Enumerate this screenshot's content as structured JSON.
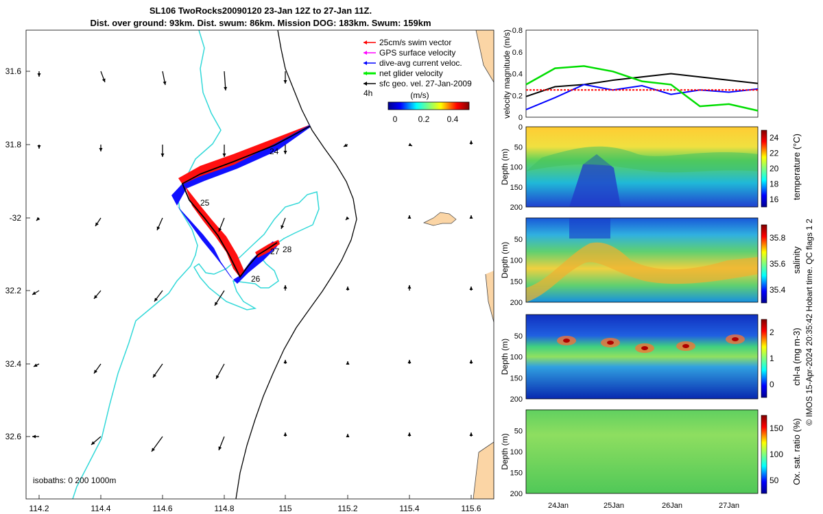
{
  "title": {
    "line1": "SL106 TwoRocks20090120 23-Jan 12Z to 27-Jan 11Z.",
    "line2": "Dist. over ground: 93km. Dist. swum: 86km. Mission DOG: 183km. Swum: 159km"
  },
  "credit": "© IMOS 15-Apr-2024 20:35:42 Hobart time. QC flags 1  2",
  "map": {
    "lon_ticks": [
      "114.2",
      "114.4",
      "114.6",
      "114.8",
      "115",
      "115.2",
      "115.4",
      "115.6"
    ],
    "lat_ticks": [
      "31.6",
      "31.8",
      "-32",
      "32.2",
      "32.4",
      "32.6"
    ],
    "isobaths_label": "isobaths: 0   200  1000m",
    "day_labels": [
      "24",
      "25",
      "26",
      "27",
      "28"
    ],
    "legend": [
      {
        "label": "25cm/s swim vector",
        "color": "#ff0000"
      },
      {
        "label": "GPS surface velocity",
        "color": "#ff00ff"
      },
      {
        "label": "dive-avg current veloc.",
        "color": "#0000ff"
      },
      {
        "label": "net glider velocity",
        "color": "#00ee00"
      },
      {
        "label": "sfc geo. vel. 27-Jan-2009",
        "color": "#000000"
      }
    ],
    "scale_label": "4h",
    "colorbar_title": "(m/s)",
    "colorbar_ticks": [
      "0",
      "0.2",
      "0.4"
    ]
  },
  "chart_data": [
    {
      "type": "line",
      "ylabel": "velocity magnitude (m/s)",
      "ylim": [
        0,
        0.8
      ],
      "yticks": [
        "0",
        "0.2",
        "0.4",
        "0.6",
        "0.8"
      ],
      "x_days": [
        0,
        0.5,
        1,
        1.5,
        2,
        2.5,
        3,
        3.5,
        4
      ],
      "series": [
        {
          "name": "sfc geo. vel.",
          "color": "#000000",
          "values": [
            0.19,
            0.28,
            0.3,
            0.34,
            0.37,
            0.4,
            0.37,
            0.34,
            0.31
          ]
        },
        {
          "name": "dive-avg current",
          "color": "#0000ff",
          "values": [
            0.07,
            0.18,
            0.3,
            0.25,
            0.29,
            0.21,
            0.25,
            0.23,
            0.26
          ]
        },
        {
          "name": "swim vector",
          "color": "#ff0000",
          "values": [
            0.25,
            0.25,
            0.25,
            0.25,
            0.25,
            0.25,
            0.25,
            0.25,
            0.25
          ]
        },
        {
          "name": "net glider velocity",
          "color": "#00dd00",
          "values": [
            0.3,
            0.45,
            0.47,
            0.42,
            0.33,
            0.3,
            0.1,
            0.12,
            0.06
          ]
        }
      ]
    },
    {
      "type": "heatmap",
      "ylabel": "Depth (m)",
      "colorbar_label": "temperature (°C)",
      "colorbar_ticks": [
        "16",
        "18",
        "20",
        "22",
        "24"
      ],
      "yticks": [
        "0",
        "50",
        "100",
        "150",
        "200"
      ]
    },
    {
      "type": "heatmap",
      "ylabel": "Depth (m)",
      "colorbar_label": "salinity",
      "colorbar_ticks": [
        "35.4",
        "35.6",
        "35.8"
      ],
      "yticks": [
        "50",
        "100",
        "150",
        "200"
      ]
    },
    {
      "type": "heatmap",
      "ylabel": "Depth (m)",
      "colorbar_label": "chl-a (mg m-3)",
      "colorbar_ticks": [
        "0",
        "1",
        "2"
      ],
      "yticks": [
        "50",
        "100",
        "150",
        "200"
      ]
    },
    {
      "type": "heatmap",
      "ylabel": "Depth (m)",
      "colorbar_label": "Ox. sat. ratio (%)",
      "colorbar_ticks": [
        "50",
        "100",
        "150"
      ],
      "yticks": [
        "50",
        "100",
        "150",
        "200"
      ],
      "x_ticks": [
        "24Jan",
        "25Jan",
        "26Jan",
        "27Jan"
      ]
    }
  ]
}
